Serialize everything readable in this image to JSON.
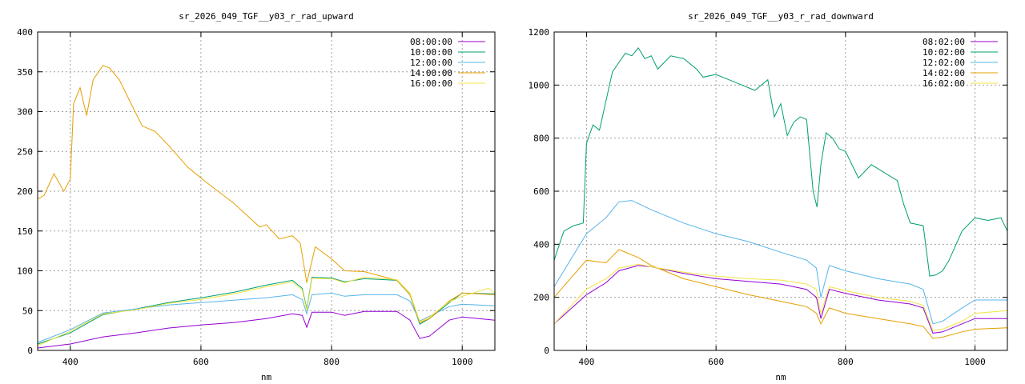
{
  "chart_data": [
    {
      "type": "line",
      "title": "sr_2026_049_TGF__y03_r_rad_upward",
      "xlabel": "nm",
      "ylabel": "",
      "xlim": [
        350,
        1050
      ],
      "ylim": [
        0,
        400
      ],
      "xticks": [
        400,
        600,
        800,
        1000
      ],
      "yticks": [
        0,
        50,
        100,
        150,
        200,
        250,
        300,
        350,
        400
      ],
      "grid": true,
      "legend": "top-right",
      "series": [
        {
          "name": "08:00:00",
          "color": "#9400d3",
          "x": [
            350,
            400,
            450,
            500,
            550,
            600,
            650,
            700,
            740,
            755,
            762,
            770,
            800,
            820,
            850,
            900,
            920,
            935,
            950,
            980,
            1000,
            1050
          ],
          "y": [
            3,
            8,
            17,
            22,
            28,
            32,
            35,
            40,
            46,
            44,
            29,
            48,
            48,
            44,
            49,
            49,
            38,
            15,
            18,
            38,
            42,
            38
          ]
        },
        {
          "name": "10:00:00",
          "color": "#009e73",
          "x": [
            350,
            400,
            450,
            500,
            550,
            600,
            650,
            700,
            740,
            755,
            762,
            770,
            800,
            820,
            850,
            900,
            920,
            935,
            950,
            980,
            1000,
            1050
          ],
          "y": [
            8,
            22,
            45,
            52,
            60,
            66,
            73,
            82,
            88,
            78,
            52,
            92,
            91,
            86,
            90,
            88,
            70,
            33,
            40,
            60,
            72,
            71
          ]
        },
        {
          "name": "12:00:00",
          "color": "#56b4e9",
          "x": [
            350,
            400,
            450,
            500,
            550,
            600,
            650,
            700,
            740,
            755,
            762,
            770,
            800,
            820,
            850,
            900,
            920,
            935,
            950,
            980,
            1000,
            1050
          ],
          "y": [
            10,
            26,
            47,
            52,
            57,
            60,
            63,
            66,
            70,
            64,
            46,
            70,
            72,
            68,
            70,
            70,
            62,
            37,
            43,
            55,
            58,
            56
          ]
        },
        {
          "name": "14:00:00",
          "color": "#e69f00",
          "x": [
            350,
            360,
            375,
            390,
            400,
            405,
            415,
            425,
            435,
            450,
            460,
            475,
            490,
            510,
            530,
            550,
            580,
            610,
            650,
            690,
            700,
            720,
            740,
            752,
            762,
            775,
            800,
            820,
            850,
            900,
            920,
            935,
            950,
            980,
            1000,
            1050
          ],
          "y": [
            190,
            195,
            222,
            200,
            215,
            310,
            330,
            295,
            340,
            358,
            355,
            340,
            315,
            282,
            275,
            258,
            230,
            210,
            185,
            155,
            158,
            140,
            144,
            135,
            85,
            130,
            115,
            100,
            99,
            88,
            70,
            35,
            40,
            62,
            72,
            70
          ]
        },
        {
          "name": "16:00:00",
          "color": "#f0e442",
          "x": [
            350,
            400,
            450,
            500,
            550,
            600,
            650,
            700,
            740,
            755,
            762,
            770,
            800,
            820,
            850,
            900,
            920,
            935,
            950,
            980,
            1000,
            1040,
            1050
          ],
          "y": [
            6,
            24,
            46,
            51,
            59,
            64,
            71,
            80,
            86,
            76,
            50,
            90,
            90,
            85,
            92,
            89,
            72,
            36,
            42,
            61,
            68,
            78,
            72
          ]
        }
      ]
    },
    {
      "type": "line",
      "title": "sr_2026_049_TGF__y03_r_rad_downward",
      "xlabel": "nm",
      "ylabel": "",
      "xlim": [
        350,
        1050
      ],
      "ylim": [
        0,
        1200
      ],
      "xticks": [
        400,
        600,
        800,
        1000
      ],
      "yticks": [
        0,
        200,
        400,
        600,
        800,
        1000,
        1200
      ],
      "grid": true,
      "legend": "top-right",
      "series": [
        {
          "name": "08:02:00",
          "color": "#9400d3",
          "x": [
            350,
            400,
            430,
            450,
            480,
            500,
            550,
            600,
            650,
            700,
            740,
            755,
            762,
            775,
            800,
            850,
            900,
            920,
            935,
            950,
            980,
            1000,
            1050
          ],
          "y": [
            100,
            210,
            255,
            300,
            320,
            315,
            290,
            270,
            260,
            250,
            230,
            200,
            120,
            230,
            215,
            190,
            175,
            160,
            65,
            70,
            100,
            120,
            120
          ]
        },
        {
          "name": "10:02:00",
          "color": "#009e73",
          "x": [
            350,
            365,
            380,
            395,
            400,
            410,
            420,
            430,
            440,
            460,
            470,
            480,
            490,
            500,
            510,
            530,
            550,
            570,
            580,
            600,
            620,
            640,
            660,
            680,
            690,
            700,
            710,
            720,
            730,
            740,
            750,
            756,
            762,
            770,
            780,
            790,
            800,
            810,
            820,
            840,
            860,
            880,
            890,
            900,
            920,
            930,
            940,
            950,
            960,
            980,
            1000,
            1020,
            1040,
            1050
          ],
          "y": [
            340,
            450,
            470,
            480,
            780,
            850,
            830,
            940,
            1050,
            1120,
            1110,
            1140,
            1100,
            1110,
            1060,
            1110,
            1100,
            1060,
            1030,
            1040,
            1020,
            1000,
            980,
            1020,
            880,
            930,
            810,
            860,
            880,
            870,
            600,
            540,
            700,
            820,
            800,
            760,
            750,
            700,
            650,
            700,
            670,
            640,
            550,
            480,
            470,
            280,
            285,
            300,
            340,
            450,
            500,
            490,
            500,
            450
          ]
        },
        {
          "name": "12:02:00",
          "color": "#56b4e9",
          "x": [
            350,
            400,
            430,
            450,
            470,
            500,
            550,
            600,
            650,
            700,
            740,
            755,
            762,
            775,
            800,
            850,
            900,
            920,
            935,
            950,
            980,
            1000,
            1050
          ],
          "y": [
            240,
            440,
            500,
            560,
            565,
            530,
            480,
            440,
            410,
            370,
            340,
            310,
            200,
            320,
            300,
            270,
            250,
            230,
            100,
            110,
            160,
            190,
            190
          ]
        },
        {
          "name": "14:02:00",
          "color": "#e69f00",
          "x": [
            350,
            400,
            430,
            450,
            480,
            500,
            550,
            600,
            650,
            700,
            740,
            755,
            762,
            775,
            800,
            850,
            900,
            920,
            935,
            950,
            980,
            1000,
            1050
          ],
          "y": [
            200,
            340,
            330,
            380,
            350,
            320,
            270,
            240,
            210,
            185,
            165,
            140,
            100,
            160,
            140,
            120,
            100,
            90,
            45,
            50,
            70,
            80,
            85
          ]
        },
        {
          "name": "16:02:00",
          "color": "#f0e442",
          "x": [
            350,
            400,
            430,
            450,
            480,
            500,
            550,
            600,
            650,
            700,
            740,
            755,
            762,
            775,
            800,
            850,
            900,
            920,
            935,
            950,
            980,
            1000,
            1050
          ],
          "y": [
            100,
            230,
            270,
            310,
            325,
            315,
            295,
            280,
            270,
            265,
            250,
            230,
            140,
            240,
            225,
            200,
            185,
            170,
            75,
            80,
            110,
            140,
            150
          ]
        }
      ]
    }
  ]
}
